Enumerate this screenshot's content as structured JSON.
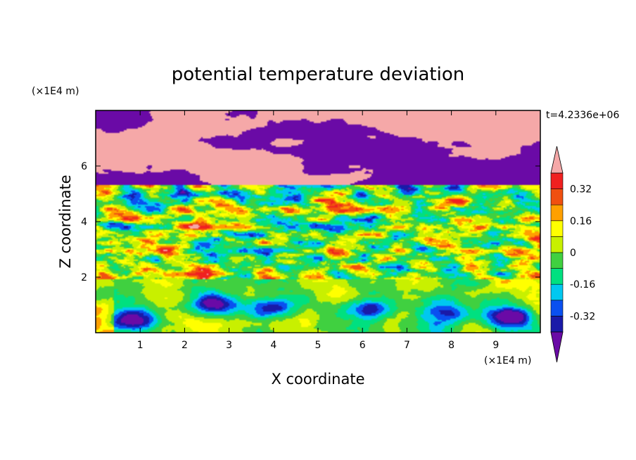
{
  "chart_data": {
    "type": "heatmap",
    "title": "potential temperature deviation",
    "xlabel": "X coordinate",
    "ylabel": "Z coordinate",
    "x_unit": "(×1E4 m)",
    "y_unit": "(×1E4 m)",
    "time_label": "t=4.2336e+06",
    "xlim": [
      0,
      10
    ],
    "ylim": [
      0,
      8
    ],
    "x_ticks": [
      "1",
      "2",
      "3",
      "4",
      "5",
      "6",
      "7",
      "8",
      "9"
    ],
    "y_ticks": [
      "2",
      "4",
      "6"
    ],
    "colorbar": {
      "levels": [
        -0.4,
        -0.32,
        -0.24,
        -0.16,
        -0.08,
        0,
        0.08,
        0.16,
        0.24,
        0.32,
        0.4
      ],
      "labels": [
        "0.32",
        "0.16",
        "0",
        "-0.16",
        "-0.32"
      ],
      "label_values": [
        0.32,
        0.16,
        0,
        -0.16,
        -0.32
      ],
      "colors": [
        "#6a0aa6",
        "#1a1aa8",
        "#0a50f0",
        "#00c8f0",
        "#00e080",
        "#40d040",
        "#c8f000",
        "#ffff00",
        "#ffa000",
        "#f05010",
        "#f02020",
        "#f5a8a8"
      ],
      "under_color": "#6a0aa6",
      "over_color": "#f5a8a8"
    }
  }
}
